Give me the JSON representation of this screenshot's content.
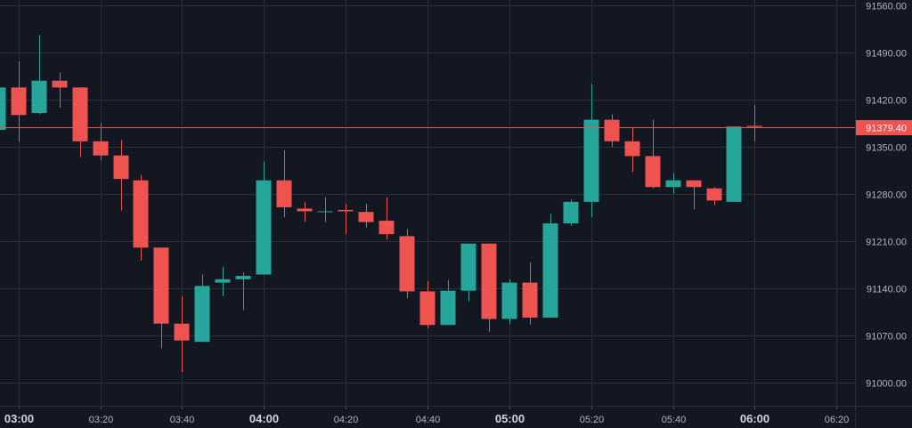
{
  "chart_data": {
    "type": "candlestick",
    "y_ticks": [
      "91560.00",
      "91490.00",
      "91420.00",
      "91350.00",
      "91280.00",
      "91210.00",
      "91140.00",
      "91070.00",
      "91000.00"
    ],
    "y_tick_values": [
      91560,
      91490,
      91420,
      91350,
      91280,
      91210,
      91140,
      91070,
      91000
    ],
    "ylim": [
      90965,
      91568
    ],
    "x_ticks": [
      {
        "label": "03:00",
        "minute": 180,
        "major": true
      },
      {
        "label": "03:20",
        "minute": 200,
        "major": false
      },
      {
        "label": "03:40",
        "minute": 220,
        "major": false
      },
      {
        "label": "04:00",
        "minute": 240,
        "major": true
      },
      {
        "label": "04:20",
        "minute": 260,
        "major": false
      },
      {
        "label": "04:40",
        "minute": 280,
        "major": false
      },
      {
        "label": "05:00",
        "minute": 300,
        "major": true
      },
      {
        "label": "05:20",
        "minute": 320,
        "major": false
      },
      {
        "label": "05:40",
        "minute": 340,
        "major": false
      },
      {
        "label": "06:00",
        "minute": 360,
        "major": true
      },
      {
        "label": "06:20",
        "minute": 380,
        "major": false
      }
    ],
    "xlim_minutes": [
      175.5,
      384.5
    ],
    "interval_minutes": 5,
    "current_price": "91379.40",
    "current_price_value": 91379.4,
    "colors": {
      "up": "#26a69a",
      "down": "#ef5350",
      "background": "#131722",
      "grid": "#2a2e39",
      "price_line": "#ef5350"
    },
    "candles": [
      {
        "minute": 175,
        "open": 91375,
        "high": 91480,
        "low": 91353,
        "close": 91438
      },
      {
        "minute": 180,
        "open": 91438,
        "high": 91477,
        "low": 91357,
        "close": 91397
      },
      {
        "minute": 185,
        "open": 91400,
        "high": 91516,
        "low": 91398,
        "close": 91448
      },
      {
        "minute": 190,
        "open": 91448,
        "high": 91460,
        "low": 91408,
        "close": 91438
      },
      {
        "minute": 195,
        "open": 91438,
        "high": 91438,
        "low": 91335,
        "close": 91358
      },
      {
        "minute": 200,
        "open": 91358,
        "high": 91385,
        "low": 91330,
        "close": 91337
      },
      {
        "minute": 205,
        "open": 91337,
        "high": 91360,
        "low": 91255,
        "close": 91302
      },
      {
        "minute": 210,
        "open": 91300,
        "high": 91308,
        "low": 91181,
        "close": 91200
      },
      {
        "minute": 215,
        "open": 91200,
        "high": 91200,
        "low": 91050,
        "close": 91087
      },
      {
        "minute": 220,
        "open": 91087,
        "high": 91128,
        "low": 91015,
        "close": 91062
      },
      {
        "minute": 225,
        "open": 91060,
        "high": 91160,
        "low": 91060,
        "close": 91143
      },
      {
        "minute": 230,
        "open": 91148,
        "high": 91172,
        "low": 91128,
        "close": 91153
      },
      {
        "minute": 235,
        "open": 91153,
        "high": 91163,
        "low": 91107,
        "close": 91158
      },
      {
        "minute": 240,
        "open": 91160,
        "high": 91328,
        "low": 91160,
        "close": 91300
      },
      {
        "minute": 245,
        "open": 91300,
        "high": 91345,
        "low": 91245,
        "close": 91260
      },
      {
        "minute": 250,
        "open": 91258,
        "high": 91268,
        "low": 91238,
        "close": 91254
      },
      {
        "minute": 255,
        "open": 91254,
        "high": 91275,
        "low": 91238,
        "close": 91254
      },
      {
        "minute": 260,
        "open": 91256,
        "high": 91265,
        "low": 91220,
        "close": 91254
      },
      {
        "minute": 265,
        "open": 91253,
        "high": 91265,
        "low": 91230,
        "close": 91238
      },
      {
        "minute": 270,
        "open": 91240,
        "high": 91275,
        "low": 91212,
        "close": 91220
      },
      {
        "minute": 275,
        "open": 91217,
        "high": 91227,
        "low": 91125,
        "close": 91135
      },
      {
        "minute": 280,
        "open": 91135,
        "high": 91150,
        "low": 91080,
        "close": 91085
      },
      {
        "minute": 285,
        "open": 91085,
        "high": 91152,
        "low": 91085,
        "close": 91136
      },
      {
        "minute": 290,
        "open": 91136,
        "high": 91206,
        "low": 91120,
        "close": 91206
      },
      {
        "minute": 295,
        "open": 91206,
        "high": 91206,
        "low": 91075,
        "close": 91094
      },
      {
        "minute": 300,
        "open": 91094,
        "high": 91153,
        "low": 91086,
        "close": 91148
      },
      {
        "minute": 305,
        "open": 91148,
        "high": 91178,
        "low": 91086,
        "close": 91096
      },
      {
        "minute": 310,
        "open": 91096,
        "high": 91250,
        "low": 91096,
        "close": 91236
      },
      {
        "minute": 315,
        "open": 91236,
        "high": 91272,
        "low": 91232,
        "close": 91268
      },
      {
        "minute": 320,
        "open": 91268,
        "high": 91443,
        "low": 91245,
        "close": 91390
      },
      {
        "minute": 325,
        "open": 91390,
        "high": 91398,
        "low": 91350,
        "close": 91358
      },
      {
        "minute": 330,
        "open": 91358,
        "high": 91378,
        "low": 91312,
        "close": 91336
      },
      {
        "minute": 335,
        "open": 91336,
        "high": 91390,
        "low": 91288,
        "close": 91290
      },
      {
        "minute": 340,
        "open": 91290,
        "high": 91311,
        "low": 91280,
        "close": 91300
      },
      {
        "minute": 345,
        "open": 91300,
        "high": 91300,
        "low": 91257,
        "close": 91290
      },
      {
        "minute": 350,
        "open": 91288,
        "high": 91290,
        "low": 91263,
        "close": 91270
      },
      {
        "minute": 355,
        "open": 91268,
        "high": 91380,
        "low": 91268,
        "close": 91380
      },
      {
        "minute": 360,
        "open": 91381,
        "high": 91412,
        "low": 91358,
        "close": 91379.4
      }
    ]
  }
}
